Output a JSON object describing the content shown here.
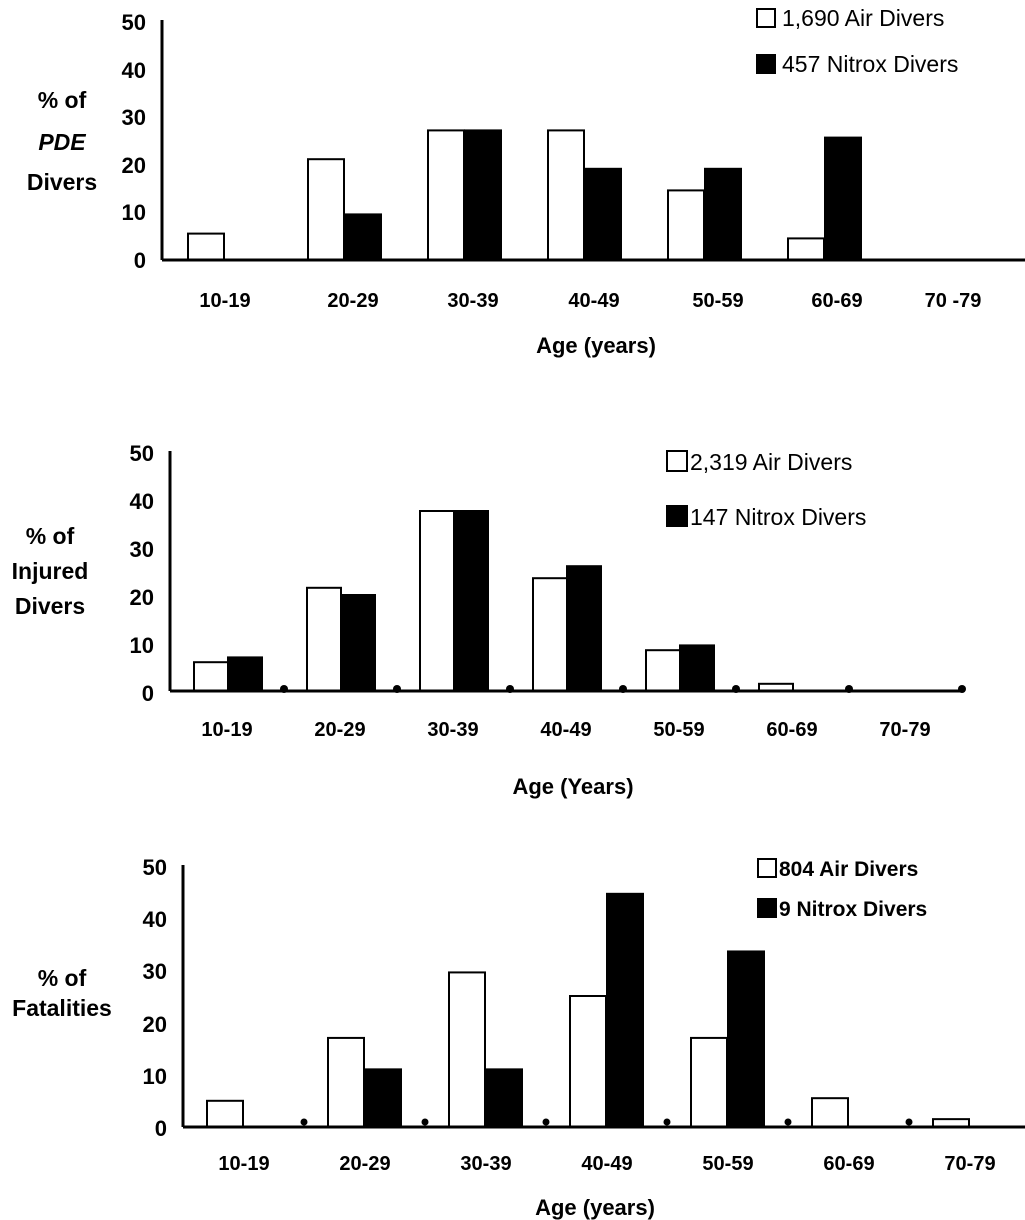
{
  "chart_data": [
    {
      "type": "bar",
      "categories": [
        "10-19",
        "20-29",
        "30-39",
        "40-49",
        "50-59",
        "60-69",
        "70 -79"
      ],
      "series": [
        {
          "name": "1,690 Air Divers",
          "values": [
            5.5,
            21,
            27,
            27,
            14.5,
            4.5,
            0
          ],
          "color": "#ffffff"
        },
        {
          "name": "457 Nitrox Divers",
          "values": [
            0,
            9.5,
            27,
            19,
            19,
            25.5,
            0
          ],
          "color": "#000000"
        }
      ],
      "ylim": [
        0,
        50
      ],
      "yticks": [
        0,
        10,
        20,
        30,
        40,
        50
      ],
      "ylabel_lines": [
        "% of",
        "PDE",
        "Divers"
      ],
      "xlabel": "Age (years)",
      "legend_position": "top-right"
    },
    {
      "type": "bar",
      "categories": [
        "10-19",
        "20-29",
        "30-39",
        "40-49",
        "50-59",
        "60-69",
        "70-79"
      ],
      "series": [
        {
          "name": "2,319 Air Divers",
          "values": [
            6,
            21.5,
            37.5,
            23.5,
            8.5,
            1.5,
            0
          ],
          "color": "#ffffff"
        },
        {
          "name": "147 Nitrox Divers",
          "values": [
            7,
            20,
            37.5,
            26,
            9.5,
            0,
            0
          ],
          "color": "#000000"
        }
      ],
      "ylim": [
        0,
        50
      ],
      "yticks": [
        0,
        10,
        20,
        30,
        40,
        50
      ],
      "ylabel_lines": [
        "% of",
        "Injured",
        "Divers"
      ],
      "xlabel": "Age (Years)",
      "legend_position": "top-right"
    },
    {
      "type": "bar",
      "categories": [
        "10-19",
        "20-29",
        "30-39",
        "40-49",
        "50-59",
        "60-69",
        "70-79"
      ],
      "series": [
        {
          "name": "804 Air Divers",
          "values": [
            5,
            17,
            29.5,
            25,
            17,
            5.5,
            1.5
          ],
          "color": "#ffffff"
        },
        {
          "name": "9 Nitrox Divers",
          "values": [
            0,
            11,
            11,
            44.5,
            33.5,
            0,
            0
          ],
          "color": "#000000"
        }
      ],
      "ylim": [
        0,
        50
      ],
      "yticks": [
        0,
        10,
        20,
        30,
        40,
        50
      ],
      "ylabel_lines": [
        "% of",
        "Fatalities"
      ],
      "xlabel": "Age (years)",
      "legend_position": "top-right"
    }
  ]
}
